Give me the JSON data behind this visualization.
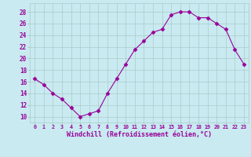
{
  "x": [
    0,
    1,
    2,
    3,
    4,
    5,
    6,
    7,
    8,
    9,
    10,
    11,
    12,
    13,
    14,
    15,
    16,
    17,
    18,
    19,
    20,
    21,
    22,
    23
  ],
  "y": [
    16.5,
    15.5,
    14.0,
    13.0,
    11.5,
    10.0,
    10.5,
    11.0,
    14.0,
    16.5,
    19.0,
    21.5,
    23.0,
    24.5,
    25.0,
    27.5,
    28.0,
    28.0,
    27.0,
    27.0,
    26.0,
    25.0,
    21.5,
    19.0
  ],
  "line_color": "#990099",
  "marker": "D",
  "marker_size": 2.5,
  "bg_color": "#c8eaf0",
  "grid_color": "#aacccc",
  "xlabel": "Windchill (Refroidissement éolien,°C)",
  "xlabel_color": "#990099",
  "tick_color": "#990099",
  "yticks": [
    10,
    12,
    14,
    16,
    18,
    20,
    22,
    24,
    26,
    28
  ],
  "ylim": [
    9,
    29.5
  ],
  "xlim": [
    -0.5,
    23.5
  ],
  "figsize": [
    3.2,
    2.0
  ],
  "dpi": 100
}
